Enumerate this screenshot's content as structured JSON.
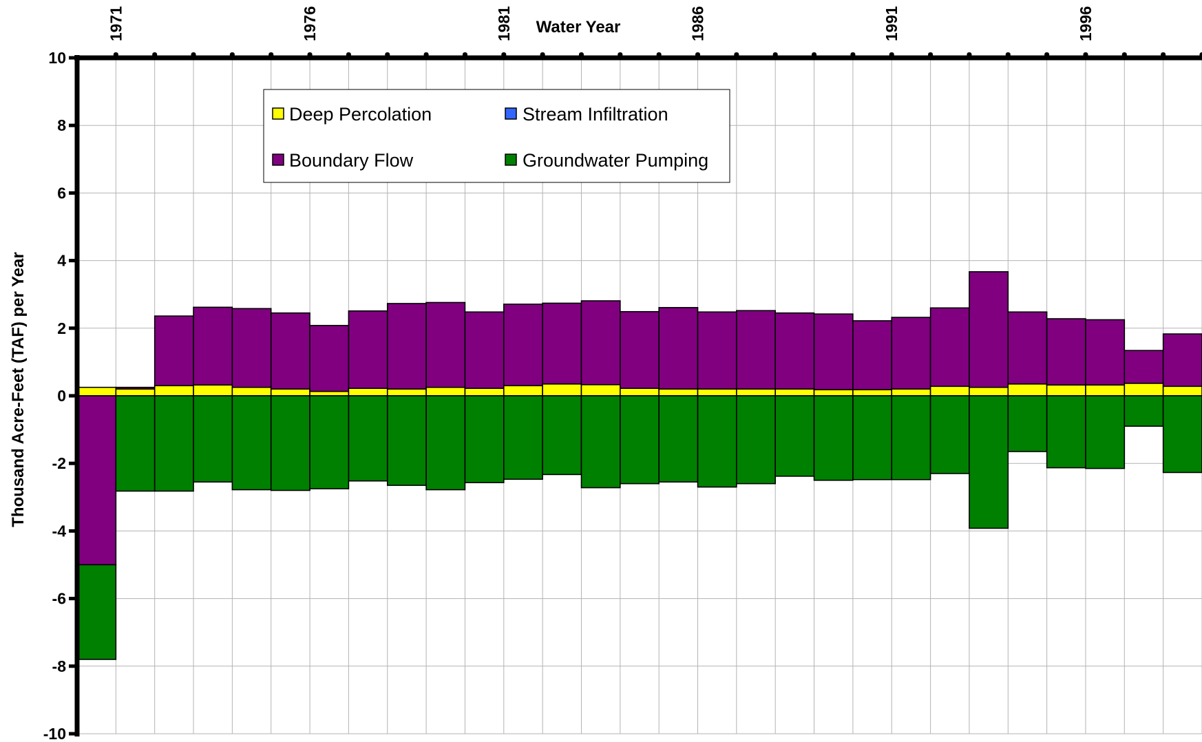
{
  "chart_data": {
    "type": "bar",
    "stacked": true,
    "xlabel": "Water Year",
    "ylabel": "Thousand Acre-Feet (TAF) per Year",
    "ylim": [
      -10,
      10
    ],
    "y_ticks": [
      10,
      8,
      6,
      4,
      2,
      0,
      -2,
      -4,
      -6,
      -8,
      -10
    ],
    "x_tick_labels": [
      "1971",
      "1976",
      "1981",
      "1986",
      "1991",
      "1996"
    ],
    "years": [
      1971,
      1972,
      1973,
      1974,
      1975,
      1976,
      1977,
      1978,
      1979,
      1980,
      1981,
      1982,
      1983,
      1984,
      1985,
      1986,
      1987,
      1988,
      1989,
      1990,
      1991,
      1992,
      1993,
      1994,
      1995,
      1996,
      1997,
      1998,
      1999
    ],
    "grid": true,
    "legend_position": "top-center",
    "series": [
      {
        "name": "Deep Percolation",
        "color": "#FFFF00",
        "values": [
          0.25,
          0.2,
          0.3,
          0.32,
          0.25,
          0.2,
          0.13,
          0.22,
          0.2,
          0.25,
          0.22,
          0.3,
          0.35,
          0.33,
          0.22,
          0.2,
          0.2,
          0.2,
          0.2,
          0.18,
          0.18,
          0.2,
          0.28,
          0.25,
          0.35,
          0.32,
          0.32,
          0.37,
          0.28
        ]
      },
      {
        "name": "Stream Infiltration",
        "color": "#3366FF",
        "values": [
          0,
          0,
          0,
          0,
          0,
          0,
          0,
          0,
          0,
          0,
          0,
          0,
          0,
          0,
          0,
          0,
          0,
          0,
          0,
          0,
          0,
          0,
          0,
          0,
          0,
          0,
          0,
          0,
          0
        ]
      },
      {
        "name": "Boundary Flow",
        "color": "#800080",
        "values": [
          -5.0,
          0.05,
          2.06,
          2.3,
          2.33,
          2.25,
          1.95,
          2.29,
          2.53,
          2.51,
          2.26,
          2.41,
          2.39,
          2.48,
          2.27,
          2.41,
          2.28,
          2.32,
          2.25,
          2.24,
          2.04,
          2.12,
          2.32,
          3.42,
          2.13,
          1.96,
          1.93,
          0.97,
          1.55
        ]
      },
      {
        "name": "Groundwater Pumping",
        "color": "#008000",
        "values": [
          -2.8,
          -2.82,
          -2.82,
          -2.55,
          -2.78,
          -2.8,
          -2.75,
          -2.52,
          -2.65,
          -2.78,
          -2.57,
          -2.47,
          -2.33,
          -2.72,
          -2.6,
          -2.55,
          -2.7,
          -2.6,
          -2.38,
          -2.5,
          -2.48,
          -2.48,
          -2.3,
          -3.92,
          -1.65,
          -2.13,
          -2.15,
          -0.9,
          -2.27
        ]
      }
    ]
  },
  "legend": {
    "items": [
      {
        "label": "Deep Percolation",
        "color": "#FFFF00"
      },
      {
        "label": "Stream Infiltration",
        "color": "#3366FF"
      },
      {
        "label": "Boundary Flow",
        "color": "#800080"
      },
      {
        "label": "Groundwater Pumping",
        "color": "#008000"
      }
    ]
  }
}
